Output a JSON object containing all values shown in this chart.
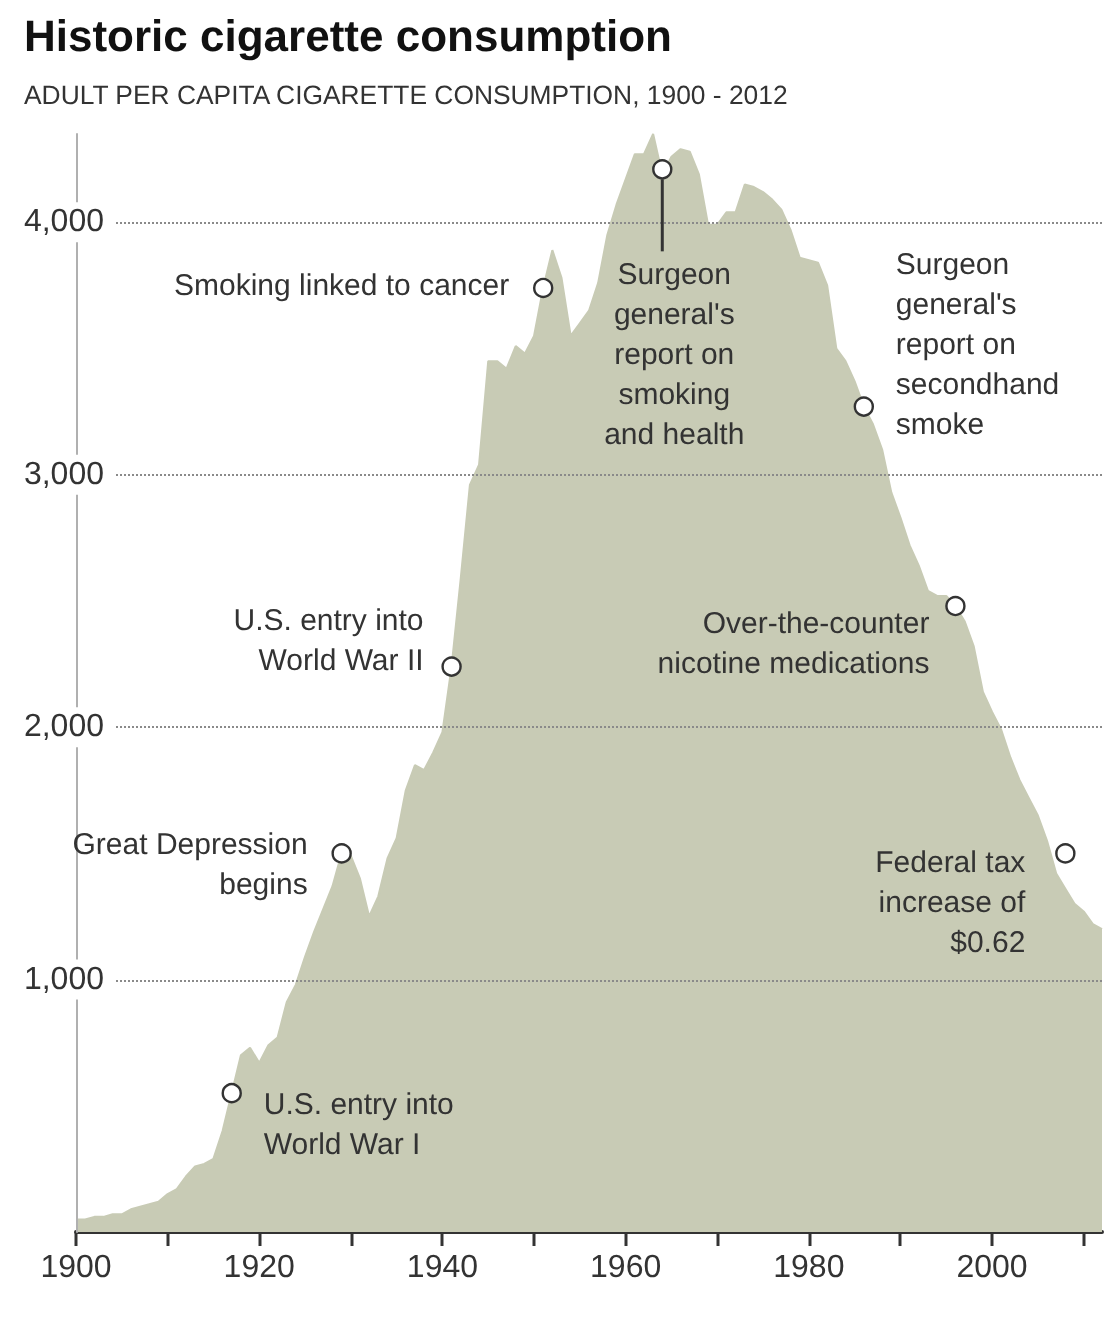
{
  "chart_data": {
    "type": "area",
    "title": "Historic cigarette consumption",
    "subtitle": "ADULT PER CAPITA CIGARETTE CONSUMPTION, 1900 - 2012",
    "x": [
      1900,
      1901,
      1902,
      1903,
      1904,
      1905,
      1906,
      1907,
      1908,
      1909,
      1910,
      1911,
      1912,
      1913,
      1914,
      1915,
      1916,
      1917,
      1918,
      1919,
      1920,
      1921,
      1922,
      1923,
      1924,
      1925,
      1926,
      1927,
      1928,
      1929,
      1930,
      1931,
      1932,
      1933,
      1934,
      1935,
      1936,
      1937,
      1938,
      1939,
      1940,
      1941,
      1942,
      1943,
      1944,
      1945,
      1946,
      1947,
      1948,
      1949,
      1950,
      1951,
      1952,
      1953,
      1954,
      1955,
      1956,
      1957,
      1958,
      1959,
      1960,
      1961,
      1962,
      1963,
      1964,
      1965,
      1966,
      1967,
      1968,
      1969,
      1970,
      1971,
      1972,
      1973,
      1974,
      1975,
      1976,
      1977,
      1978,
      1979,
      1980,
      1981,
      1982,
      1983,
      1984,
      1985,
      1986,
      1987,
      1988,
      1989,
      1990,
      1991,
      1992,
      1993,
      1994,
      1995,
      1996,
      1997,
      1998,
      1999,
      2000,
      2001,
      2002,
      2003,
      2004,
      2005,
      2006,
      2007,
      2008,
      2009,
      2010,
      2011,
      2012
    ],
    "values": [
      50,
      50,
      60,
      60,
      70,
      70,
      90,
      100,
      110,
      120,
      150,
      170,
      220,
      260,
      270,
      290,
      400,
      550,
      700,
      730,
      670,
      740,
      770,
      910,
      980,
      1090,
      1190,
      1280,
      1370,
      1500,
      1490,
      1400,
      1250,
      1330,
      1480,
      1560,
      1750,
      1850,
      1830,
      1900,
      1980,
      2240,
      2590,
      2960,
      3040,
      3450,
      3450,
      3420,
      3510,
      3480,
      3550,
      3740,
      3890,
      3780,
      3550,
      3600,
      3650,
      3760,
      3950,
      4070,
      4170,
      4270,
      4270,
      4350,
      4190,
      4260,
      4290,
      4280,
      4190,
      3990,
      3990,
      4040,
      4040,
      4150,
      4140,
      4120,
      4090,
      4050,
      3970,
      3860,
      3850,
      3840,
      3750,
      3500,
      3450,
      3370,
      3270,
      3200,
      3100,
      2930,
      2830,
      2720,
      2640,
      2540,
      2520,
      2520,
      2480,
      2420,
      2320,
      2140,
      2060,
      1990,
      1880,
      1790,
      1720,
      1650,
      1550,
      1420,
      1360,
      1300,
      1270,
      1220,
      1200
    ],
    "color": "#c8cbb5",
    "xlim": [
      1900,
      2012
    ],
    "xticks": [
      1900,
      {
        "value": 1910,
        "label": null
      },
      1920,
      {
        "value": 1930,
        "label": null
      },
      1940,
      {
        "value": 1950,
        "label": null
      },
      1960,
      {
        "value": 1970,
        "label": null
      },
      1980,
      {
        "value": 1990,
        "label": null
      },
      2000,
      {
        "value": 2010,
        "label": null
      }
    ],
    "ylim": [
      0,
      4350
    ],
    "yticks": [
      {
        "value": 1000,
        "label": "1,000"
      },
      {
        "value": 2000,
        "label": "2,000"
      },
      {
        "value": 3000,
        "label": "3,000"
      },
      {
        "value": 4000,
        "label": "4,000"
      }
    ],
    "grid": "y",
    "marker": "none",
    "annotations": [
      {
        "text": "Surgeon general's report on smoking and health",
        "x": 1964,
        "y": 4210
      },
      {
        "text": "Smoking linked to cancer",
        "x": 1951,
        "y": 3740
      },
      {
        "text": "Surgeon general's report on secondhand smoke",
        "x": 1986,
        "y": 3270
      },
      {
        "text": "U.S. entry into World War II",
        "x": 1941,
        "y": 2240
      },
      {
        "text": "Over-the-counter nicotine medications",
        "x": 1996,
        "y": 2480
      },
      {
        "text": "Great Depression begins",
        "x": 1929,
        "y": 1500
      },
      {
        "text": "Federal tax increase of $0.62",
        "x": 2008,
        "y": 1500
      },
      {
        "text": "U.S. entry into World War I",
        "x": 1917,
        "y": 550
      }
    ]
  }
}
